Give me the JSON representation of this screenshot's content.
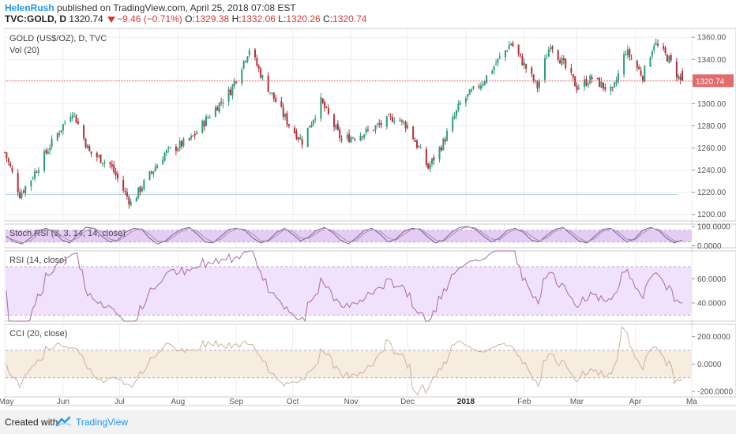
{
  "header": {
    "user": "HelenRush",
    "published": "published on TradingView.com, April 25, 2018 07:08 EST",
    "symbol": "TVC:GOLD, D",
    "last": "1320.74",
    "change": "−9.46 (−0.71%)",
    "o_label": "O:",
    "o_value": "1329.38",
    "h_label": "H:",
    "h_value": "1332.06",
    "l_label": "L:",
    "l_value": "1320.26",
    "c_label": "C:",
    "c_value": "1320.74"
  },
  "footer": {
    "created": "Created with",
    "brand": "TradingView",
    "logo_icon": "tradingview-logo-icon"
  },
  "colors": {
    "up": "#2e9c7a",
    "down": "#b4303a",
    "price_line": "#e06060",
    "price_tag": "#e26b6b",
    "stoch": "#8e6aa0",
    "stoch_fill": "#e4ccf4",
    "rsi": "#a66aa6",
    "rsi_fill": "#f1e2fb",
    "cci": "#c9b496",
    "cci_fill": "#f6ece0",
    "grid": "#eeeeee",
    "brand": "#2196f3"
  },
  "chart_data": {
    "type": "candlestick",
    "title": "GOLD (US$/OZ), D, TVC",
    "volume_label": "Vol (20)",
    "price_axis": {
      "ticks": [
        1200,
        1220,
        1240,
        1260,
        1280,
        1300,
        1320,
        1340,
        1360
      ],
      "labels": [
        "1200.00",
        "1220.00",
        "1240.00",
        "1260.00",
        "1280.00",
        "1300.00",
        "1320.00",
        "1340.00",
        "1360.00"
      ],
      "range": [
        1194,
        1368
      ]
    },
    "last_price": 1320.74,
    "last_price_label": "1320.74",
    "support_level": 1218,
    "x_axis_labels": [
      "May",
      "Jun",
      "Jul",
      "Aug",
      "Sep",
      "Oct",
      "Nov",
      "Dec",
      "2018",
      "Feb",
      "Mar",
      "Apr",
      "Ma"
    ],
    "price_anchors": [
      {
        "d": "2017-05-01",
        "p": 1256
      },
      {
        "d": "2017-05-09",
        "p": 1218
      },
      {
        "d": "2017-05-15",
        "p": 1232
      },
      {
        "d": "2017-05-25",
        "p": 1262
      },
      {
        "d": "2017-06-06",
        "p": 1294
      },
      {
        "d": "2017-06-15",
        "p": 1256
      },
      {
        "d": "2017-06-26",
        "p": 1245
      },
      {
        "d": "2017-07-03",
        "p": 1222
      },
      {
        "d": "2017-07-07",
        "p": 1210
      },
      {
        "d": "2017-07-14",
        "p": 1228
      },
      {
        "d": "2017-07-25",
        "p": 1255
      },
      {
        "d": "2017-08-08",
        "p": 1268
      },
      {
        "d": "2017-08-18",
        "p": 1290
      },
      {
        "d": "2017-08-29",
        "p": 1312
      },
      {
        "d": "2017-09-08",
        "p": 1350
      },
      {
        "d": "2017-09-15",
        "p": 1323
      },
      {
        "d": "2017-09-29",
        "p": 1281
      },
      {
        "d": "2017-10-06",
        "p": 1266
      },
      {
        "d": "2017-10-16",
        "p": 1302
      },
      {
        "d": "2017-10-27",
        "p": 1267
      },
      {
        "d": "2017-11-10",
        "p": 1275
      },
      {
        "d": "2017-11-24",
        "p": 1288
      },
      {
        "d": "2017-12-01",
        "p": 1280
      },
      {
        "d": "2017-12-12",
        "p": 1242
      },
      {
        "d": "2017-12-20",
        "p": 1265
      },
      {
        "d": "2017-12-29",
        "p": 1300
      },
      {
        "d": "2018-01-10",
        "p": 1320
      },
      {
        "d": "2018-01-25",
        "p": 1355
      },
      {
        "d": "2018-02-08",
        "p": 1315
      },
      {
        "d": "2018-02-15",
        "p": 1355
      },
      {
        "d": "2018-03-01",
        "p": 1315
      },
      {
        "d": "2018-03-09",
        "p": 1323
      },
      {
        "d": "2018-03-20",
        "p": 1310
      },
      {
        "d": "2018-03-27",
        "p": 1348
      },
      {
        "d": "2018-04-05",
        "p": 1325
      },
      {
        "d": "2018-04-11",
        "p": 1355
      },
      {
        "d": "2018-04-19",
        "p": 1340
      },
      {
        "d": "2018-04-25",
        "p": 1320.74
      }
    ],
    "indicators": [
      {
        "name": "Stoch RSI (3, 3, 14, 14, close)",
        "axis_labels": [
          "100.0000",
          "0.0000"
        ],
        "axis_values": [
          100,
          0
        ],
        "range": [
          -10,
          112
        ],
        "band": [
          20,
          80
        ],
        "series": [
          {
            "values": [
              50,
              20,
              10,
              40,
              80,
              90,
              70,
              30,
              15,
              60,
              95,
              90,
              50,
              20,
              30,
              70,
              90,
              85,
              40,
              10,
              25,
              60,
              85,
              95,
              60,
              20,
              15,
              50,
              85,
              90,
              80,
              40,
              15,
              30,
              70,
              90,
              60,
              25,
              45,
              80,
              95,
              70,
              30,
              10,
              40,
              80,
              90,
              60,
              20,
              35,
              75,
              90,
              85,
              45,
              15,
              30,
              70,
              95,
              100,
              85,
              50,
              20,
              40,
              80,
              90,
              70,
              30,
              20,
              55,
              85,
              95,
              60,
              25,
              15,
              50,
              85,
              90,
              55,
              20,
              35,
              80,
              95,
              80,
              40,
              15,
              30
            ]
          },
          {
            "values": [
              45,
              30,
              15,
              25,
              60,
              85,
              80,
              50,
              25,
              40,
              80,
              92,
              70,
              35,
              25,
              50,
              80,
              88,
              60,
              25,
              20,
              45,
              75,
              90,
              75,
              40,
              20,
              35,
              70,
              88,
              85,
              60,
              25,
              25,
              55,
              85,
              75,
              40,
              38,
              65,
              90,
              80,
              50,
              20,
              28,
              65,
              85,
              75,
              40,
              30,
              60,
              85,
              88,
              60,
              30,
              25,
              55,
              85,
              97,
              92,
              65,
              35,
              32,
              65,
              85,
              80,
              50,
              25,
              42,
              75,
              90,
              75,
              40,
              20,
              38,
              75,
              88,
              70,
              35,
              30,
              65,
              90,
              85,
              55,
              25,
              25
            ]
          }
        ]
      },
      {
        "name": "RSI (14, close)",
        "axis_labels": [
          "60.0000",
          "40.0000"
        ],
        "axis_values": [
          60,
          40
        ],
        "range": [
          25,
          83
        ],
        "band": [
          30,
          70
        ],
        "series": []
      },
      {
        "name": "CCI (20, close)",
        "axis_labels": [
          "200.0000",
          "0.0000",
          "-200.0000"
        ],
        "axis_values": [
          200,
          0,
          -200
        ],
        "range": [
          -240,
          290
        ],
        "band": [
          -100,
          100
        ],
        "series": []
      }
    ]
  }
}
